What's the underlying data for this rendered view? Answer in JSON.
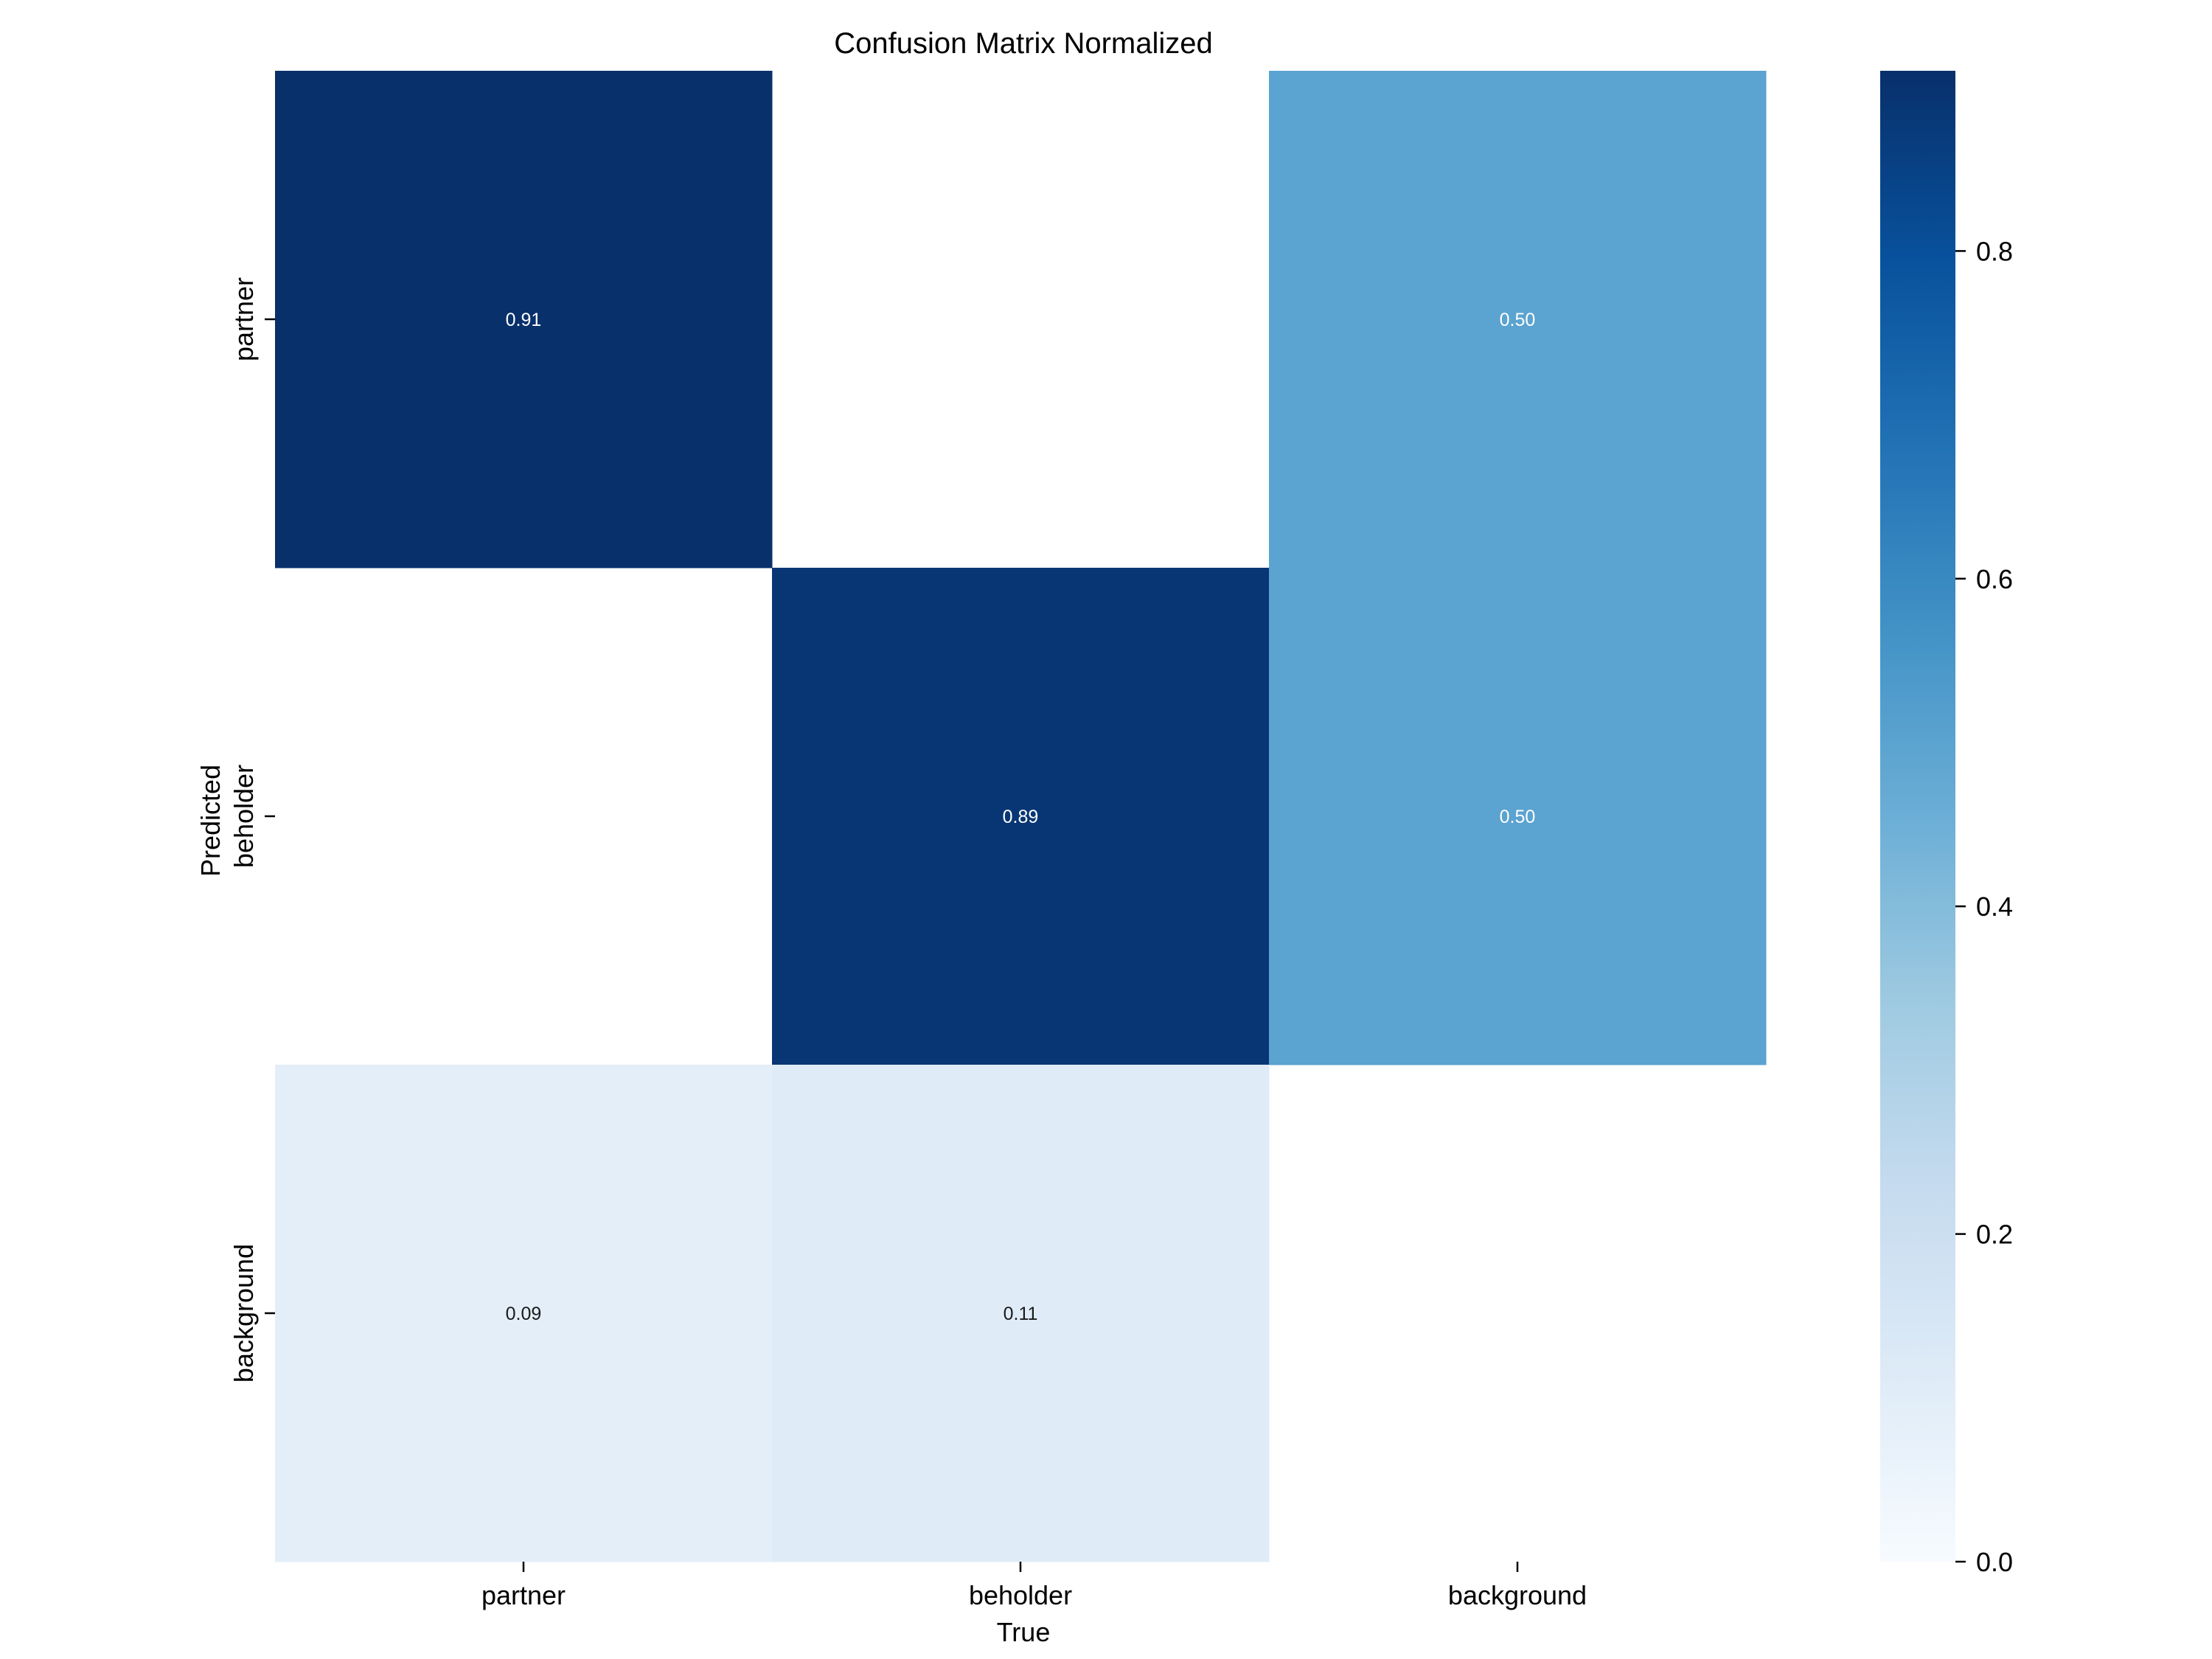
{
  "chart_data": {
    "type": "heatmap",
    "title": "Confusion Matrix Normalized",
    "xlabel": "True",
    "ylabel": "Predicted",
    "x_categories": [
      "partner",
      "beholder",
      "background"
    ],
    "y_categories": [
      "partner",
      "beholder",
      "background"
    ],
    "values": [
      [
        0.91,
        null,
        0.5
      ],
      [
        null,
        0.89,
        0.5
      ],
      [
        0.09,
        0.11,
        null
      ]
    ],
    "cell_labels": [
      [
        "0.91",
        "",
        "0.50"
      ],
      [
        "",
        "0.89",
        "0.50"
      ],
      [
        "0.09",
        "0.11",
        ""
      ]
    ],
    "colormap": "Blues",
    "vmin": 0.0,
    "vmax": 0.91,
    "colorbar_ticks": [
      0.0,
      0.2,
      0.4,
      0.6,
      0.8
    ],
    "colorbar_tick_labels": [
      "0.0",
      "0.2",
      "0.4",
      "0.6",
      "0.8"
    ]
  },
  "colors": {
    "blues": [
      "#f7fbff",
      "#deebf7",
      "#c6dbef",
      "#9ecae1",
      "#6baed6",
      "#4292c6",
      "#2171b5",
      "#08519c",
      "#08306b"
    ]
  }
}
